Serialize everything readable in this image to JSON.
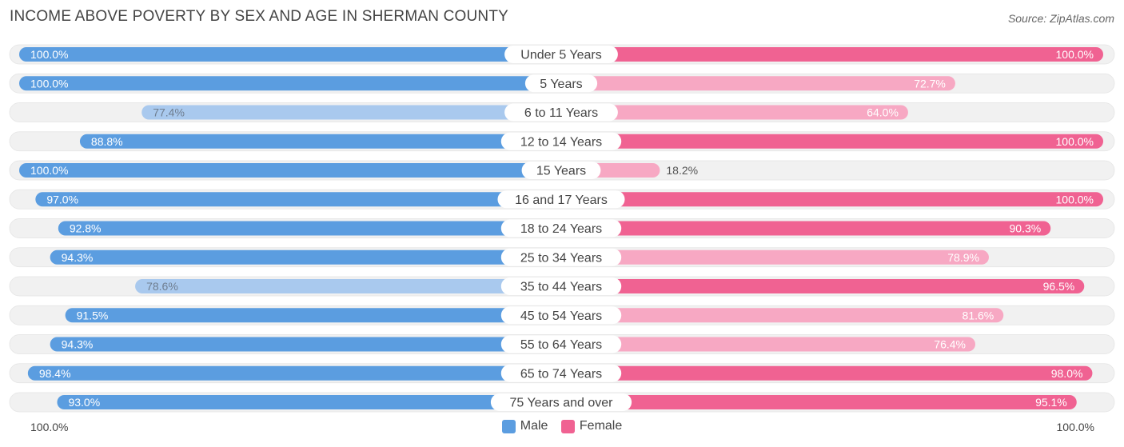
{
  "title": "INCOME ABOVE POVERTY BY SEX AND AGE IN SHERMAN COUNTY",
  "source": "Source: ZipAtlas.com",
  "colors": {
    "male": "#5b9de0",
    "male_light": "#a9c9ee",
    "female": "#f06292",
    "female_light": "#f7a8c3",
    "track": "#f1f1f1"
  },
  "axis": {
    "left_label": "100.0%",
    "right_label": "100.0%"
  },
  "legend": {
    "male": "Male",
    "female": "Female"
  },
  "chart_data": {
    "type": "bar",
    "orientation": "horizontal-diverging",
    "title": "INCOME ABOVE POVERTY BY SEX AND AGE IN SHERMAN COUNTY",
    "xlim": [
      0,
      100
    ],
    "categories": [
      "Under 5 Years",
      "5 Years",
      "6 to 11 Years",
      "12 to 14 Years",
      "15 Years",
      "16 and 17 Years",
      "18 to 24 Years",
      "25 to 34 Years",
      "35 to 44 Years",
      "45 to 54 Years",
      "55 to 64 Years",
      "65 to 74 Years",
      "75 Years and over"
    ],
    "series": [
      {
        "name": "Male",
        "values": [
          100.0,
          100.0,
          77.4,
          88.8,
          100.0,
          97.0,
          92.8,
          94.3,
          78.6,
          91.5,
          94.3,
          98.4,
          93.0
        ],
        "labels": [
          "100.0%",
          "100.0%",
          "77.4%",
          "88.8%",
          "100.0%",
          "97.0%",
          "92.8%",
          "94.3%",
          "78.6%",
          "91.5%",
          "94.3%",
          "98.4%",
          "93.0%"
        ]
      },
      {
        "name": "Female",
        "values": [
          100.0,
          72.7,
          64.0,
          100.0,
          18.2,
          100.0,
          90.3,
          78.9,
          96.5,
          81.6,
          76.4,
          98.0,
          95.1
        ],
        "labels": [
          "100.0%",
          "72.7%",
          "64.0%",
          "100.0%",
          "18.2%",
          "100.0%",
          "90.3%",
          "78.9%",
          "96.5%",
          "81.6%",
          "76.4%",
          "98.0%",
          "95.1%"
        ]
      }
    ]
  }
}
